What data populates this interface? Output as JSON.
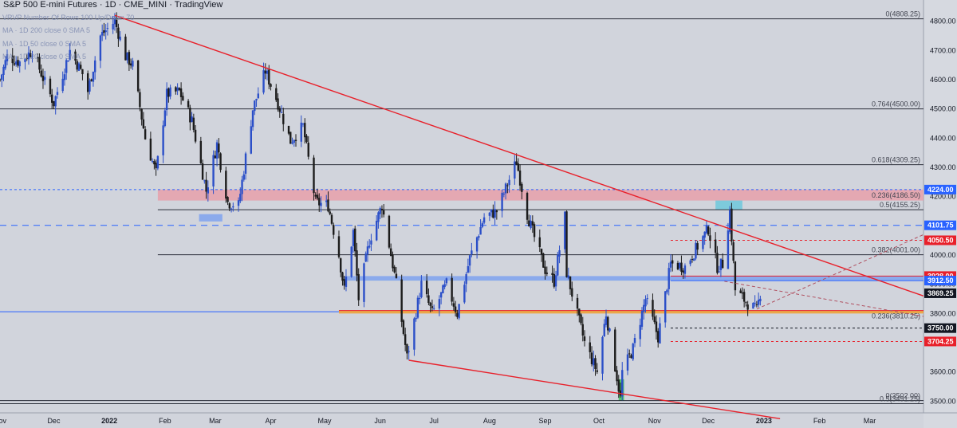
{
  "header": {
    "title": "S&P 500 E-mini Futures · 1D · CME_MINI · TradingView",
    "studies": [
      "VRVP Number Of Rows 100 Up/Down 70",
      "MA · 1D 200 close 0 SMA 5",
      "MA · 1D 50 close 0 SMA 5",
      "MA · 1D 20 close 0 SMA 5"
    ]
  },
  "colors": {
    "background": "#d1d4dc",
    "candle_up": "#2b4fc8",
    "candle_down": "#1c1c1c",
    "trendline": "#e8202a",
    "fib_line": "#2a2e39",
    "zone_red": "#e8a0aa",
    "zone_blue": "#7fa2ee",
    "zone_orange": "#f0a030",
    "zone_cyan": "#6ec8dc",
    "zone_green": "#3fbf5a"
  },
  "chart_data": {
    "type": "candlestick",
    "x_unit": "date",
    "xlim": [
      "2021-11-01",
      "2023-03-31"
    ],
    "ylim": [
      3460,
      4840
    ],
    "y_ticks": [
      3500,
      3600,
      3700,
      3800,
      3900,
      4000,
      4100,
      4200,
      4300,
      4400,
      4500,
      4600,
      4700,
      4800
    ],
    "x_ticks": [
      {
        "date": "2021-11-01",
        "label": "Nov"
      },
      {
        "date": "2021-12-01",
        "label": "Dec"
      },
      {
        "date": "2022-01-01",
        "label": "2022"
      },
      {
        "date": "2022-02-01",
        "label": "Feb"
      },
      {
        "date": "2022-03-01",
        "label": "Mar"
      },
      {
        "date": "2022-04-01",
        "label": "Apr"
      },
      {
        "date": "2022-05-01",
        "label": "May"
      },
      {
        "date": "2022-06-01",
        "label": "Jun"
      },
      {
        "date": "2022-07-01",
        "label": "Jul"
      },
      {
        "date": "2022-08-01",
        "label": "Aug"
      },
      {
        "date": "2022-09-01",
        "label": "Sep"
      },
      {
        "date": "2022-10-01",
        "label": "Oct"
      },
      {
        "date": "2022-11-01",
        "label": "Nov"
      },
      {
        "date": "2022-12-01",
        "label": "Dec"
      },
      {
        "date": "2023-01-01",
        "label": "2023"
      },
      {
        "date": "2023-02-01",
        "label": "Feb"
      },
      {
        "date": "2023-03-01",
        "label": "Mar"
      }
    ],
    "price_path": [
      [
        "2021-11-01",
        4600
      ],
      [
        "2021-11-05",
        4680
      ],
      [
        "2021-11-12",
        4660
      ],
      [
        "2021-11-19",
        4700
      ],
      [
        "2021-11-26",
        4590
      ],
      [
        "2021-12-01",
        4520
      ],
      [
        "2021-12-03",
        4560
      ],
      [
        "2021-12-10",
        4700
      ],
      [
        "2021-12-17",
        4620
      ],
      [
        "2021-12-20",
        4560
      ],
      [
        "2021-12-27",
        4750
      ],
      [
        "2022-01-04",
        4800
      ],
      [
        "2022-01-10",
        4680
      ],
      [
        "2022-01-14",
        4650
      ],
      [
        "2022-01-21",
        4400
      ],
      [
        "2022-01-27",
        4280
      ],
      [
        "2022-02-02",
        4550
      ],
      [
        "2022-02-09",
        4560
      ],
      [
        "2022-02-16",
        4460
      ],
      [
        "2022-02-24",
        4220
      ],
      [
        "2022-03-02",
        4380
      ],
      [
        "2022-03-08",
        4180
      ],
      [
        "2022-03-14",
        4170
      ],
      [
        "2022-03-22",
        4500
      ],
      [
        "2022-03-29",
        4630
      ],
      [
        "2022-04-05",
        4520
      ],
      [
        "2022-04-12",
        4390
      ],
      [
        "2022-04-19",
        4440
      ],
      [
        "2022-04-26",
        4180
      ],
      [
        "2022-05-03",
        4170
      ],
      [
        "2022-05-09",
        4000
      ],
      [
        "2022-05-12",
        3880
      ],
      [
        "2022-05-17",
        4080
      ],
      [
        "2022-05-20",
        3850
      ],
      [
        "2022-05-26",
        4050
      ],
      [
        "2022-06-02",
        4170
      ],
      [
        "2022-06-10",
        3900
      ],
      [
        "2022-06-16",
        3650
      ],
      [
        "2022-06-24",
        3900
      ],
      [
        "2022-06-30",
        3800
      ],
      [
        "2022-07-08",
        3900
      ],
      [
        "2022-07-14",
        3800
      ],
      [
        "2022-07-21",
        3990
      ],
      [
        "2022-07-29",
        4130
      ],
      [
        "2022-08-05",
        4150
      ],
      [
        "2022-08-16",
        4320
      ],
      [
        "2022-08-22",
        4140
      ],
      [
        "2022-08-26",
        4060
      ],
      [
        "2022-09-01",
        3950
      ],
      [
        "2022-09-06",
        3910
      ],
      [
        "2022-09-12",
        4130
      ],
      [
        "2022-09-13",
        3940
      ],
      [
        "2022-09-23",
        3700
      ],
      [
        "2022-09-30",
        3600
      ],
      [
        "2022-10-05",
        3800
      ],
      [
        "2022-10-13",
        3510
      ],
      [
        "2022-10-14",
        3600
      ],
      [
        "2022-10-20",
        3680
      ],
      [
        "2022-10-27",
        3850
      ],
      [
        "2022-11-03",
        3720
      ],
      [
        "2022-11-10",
        3970
      ],
      [
        "2022-11-18",
        3960
      ],
      [
        "2022-11-25",
        4030
      ],
      [
        "2022-12-01",
        4090
      ],
      [
        "2022-12-06",
        3960
      ],
      [
        "2022-12-09",
        3970
      ],
      [
        "2022-12-13",
        4150
      ],
      [
        "2022-12-16",
        3880
      ],
      [
        "2022-12-22",
        3840
      ],
      [
        "2022-12-28",
        3810
      ],
      [
        "2022-12-30",
        3870
      ]
    ],
    "horizontal_levels": [
      {
        "label": "0(4808.25)",
        "value": 4808.25
      },
      {
        "label": "0.764(4500.00)",
        "value": 4500
      },
      {
        "label": "0.618(4309.25)",
        "value": 4309.25
      },
      {
        "label": "0.5(4155.25)",
        "value": 4155.25
      },
      {
        "label": "0.382(4001.00)",
        "value": 4001
      },
      {
        "label": "0(3502.00)",
        "value": 3502
      },
      {
        "label": "0.5(3491.25)",
        "value": 3491.25
      }
    ],
    "zones": [
      {
        "name": "red",
        "label": "0.236(4186.50)",
        "from": "2022-01-28",
        "to": "2023-03-31",
        "low": 4186.5,
        "high": 4224
      },
      {
        "name": "blue-main",
        "from": "2022-05-12",
        "to": "2023-03-31",
        "low": 3912.5,
        "high": 3928
      },
      {
        "name": "orange",
        "label": "0.236(3810.25)",
        "from": "2022-05-09",
        "to": "2023-03-31",
        "low": 3800,
        "high": 3810.25
      },
      {
        "name": "cyan",
        "from": "2022-12-05",
        "to": "2022-12-20",
        "low": 4155.25,
        "high": 4186.5
      },
      {
        "name": "blue-small",
        "from": "2022-02-20",
        "to": "2022-03-05",
        "low": 4115,
        "high": 4140
      },
      {
        "name": "green",
        "from": "2022-10-12",
        "to": "2022-10-15",
        "low": 3502,
        "high": 3575
      }
    ],
    "trendlines": [
      {
        "from": [
          "2022-01-04",
          4820
        ],
        "to": [
          "2023-03-31",
          3860
        ]
      },
      {
        "from": [
          "2022-06-17",
          3640
        ],
        "to": [
          "2023-01-10",
          3440
        ]
      }
    ],
    "price_labels": [
      {
        "value": 4224.0,
        "text": "4224.00",
        "color": "#2962ff"
      },
      {
        "value": 4101.75,
        "text": "4101.75",
        "color": "#2962ff"
      },
      {
        "value": 4050.5,
        "text": "4050.50",
        "color": "#e8202a"
      },
      {
        "value": 3928.0,
        "text": "3928.00",
        "color": "#e8202a"
      },
      {
        "value": 3912.5,
        "text": "3912.50",
        "color": "#2962ff"
      },
      {
        "value": 3869.25,
        "text": "3869.25",
        "color": "#131722"
      },
      {
        "value": 3750.0,
        "text": "3750.00",
        "color": "#131722"
      },
      {
        "value": 3704.25,
        "text": "3704.25",
        "color": "#e8202a"
      }
    ]
  }
}
